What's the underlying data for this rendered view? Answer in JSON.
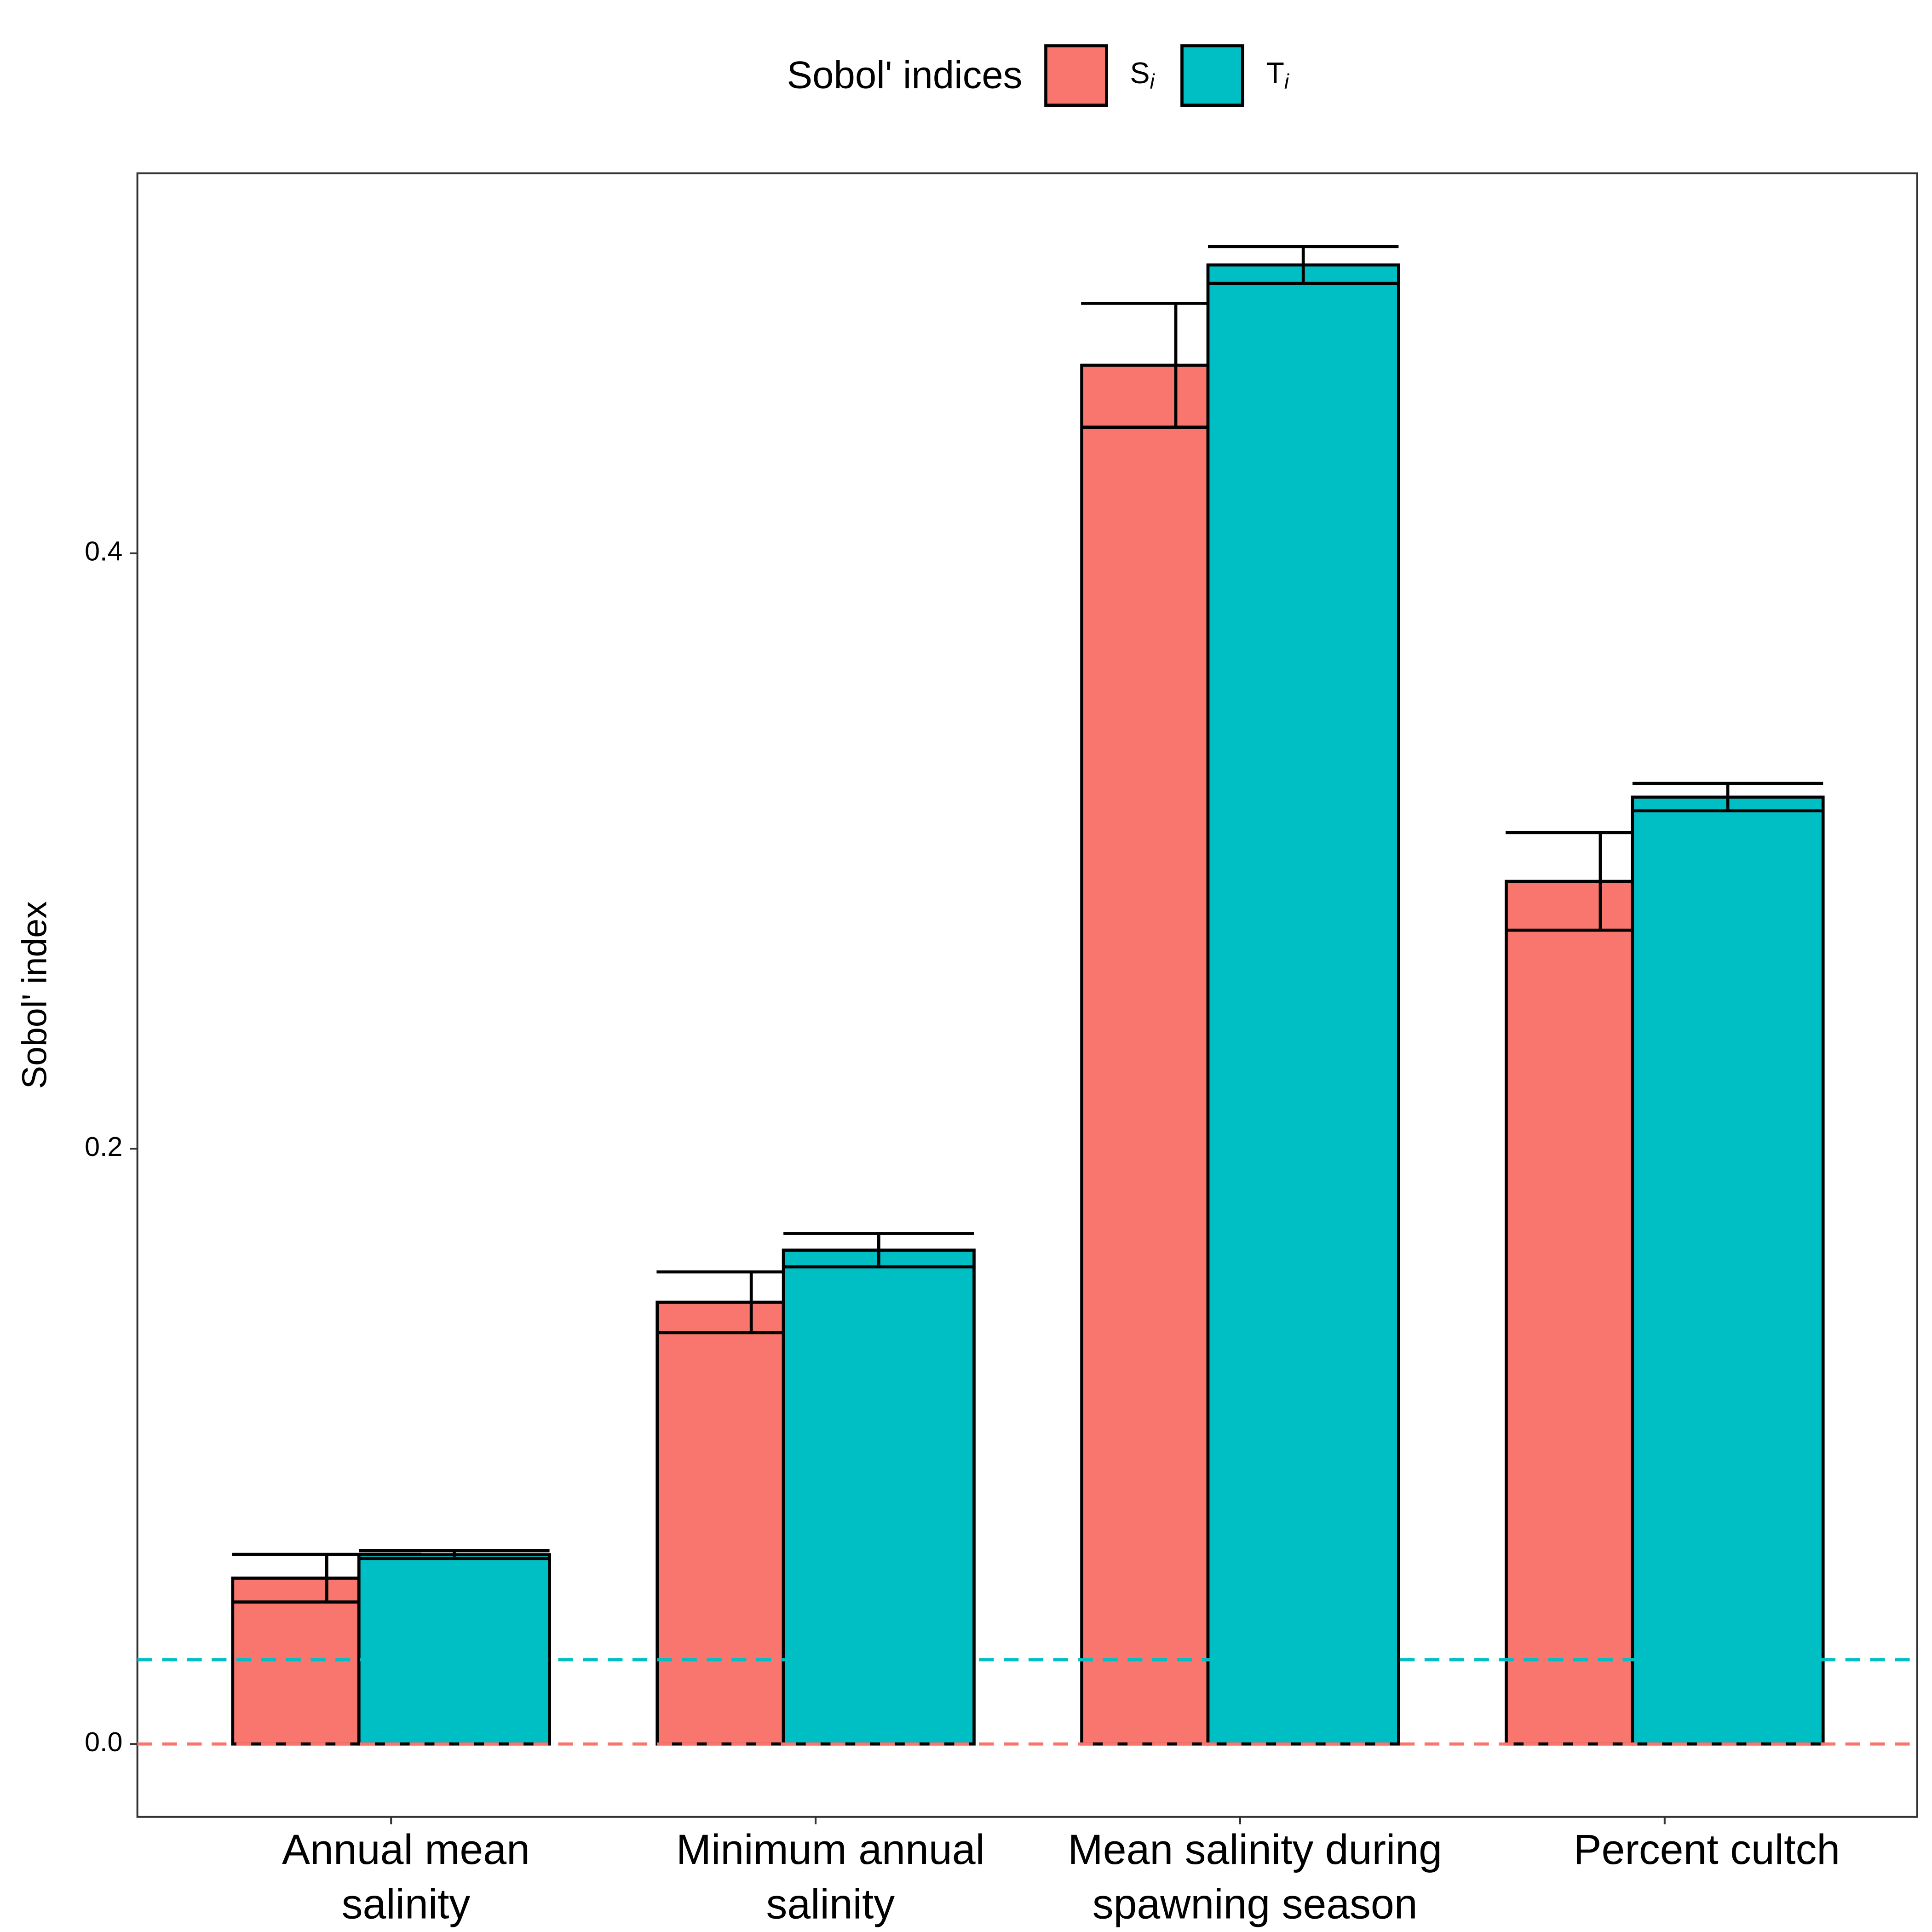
{
  "chart_data": {
    "type": "bar",
    "y_label": "Sobol' index",
    "legend_title": "Sobol' indices",
    "legend_position": "top",
    "categories": [
      [
        "Annual mean",
        "salinity"
      ],
      [
        "Minimum annual",
        "salinity"
      ],
      [
        "Mean salinity during",
        "spawning season"
      ],
      [
        "Percent cultch"
      ]
    ],
    "series": [
      {
        "name": "S",
        "subscript": "i",
        "color": "#F8766D",
        "values": [
          0.0557,
          0.1484,
          0.4632,
          0.2898
        ],
        "errors": [
          0.008,
          0.0102,
          0.0208,
          0.0164
        ]
      },
      {
        "name": "T",
        "subscript": "i",
        "color": "#00BFC4",
        "values": [
          0.0636,
          0.1659,
          0.4969,
          0.3181
        ],
        "errors": [
          0.0013,
          0.0056,
          0.0062,
          0.0046
        ]
      }
    ],
    "reference_lines": [
      {
        "value": 0.0283,
        "color": "#00BFC4"
      },
      {
        "value": 0,
        "color": "#F8766D"
      }
    ],
    "ylim": [
      -0.0245,
      0.5277
    ],
    "yticks": [
      {
        "value": 0,
        "label": "0.0"
      },
      {
        "value": 0.2,
        "label": "0.2"
      },
      {
        "value": 0.4,
        "label": "0.4"
      }
    ]
  }
}
